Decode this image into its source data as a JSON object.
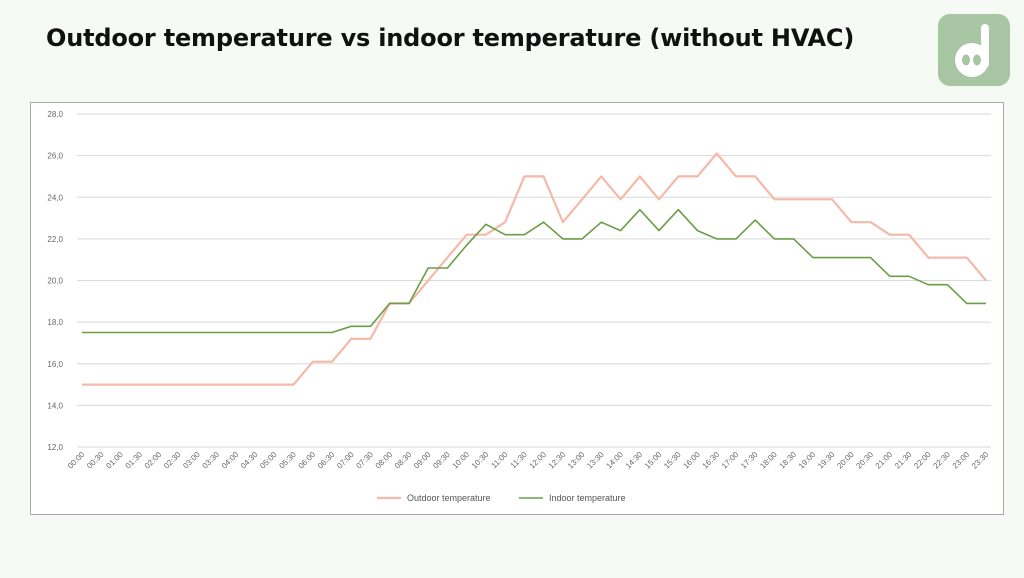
{
  "page": {
    "title": "Outdoor temperature vs indoor temperature (without HVAC)",
    "logo_icon": "dd-logo-icon"
  },
  "colors": {
    "background": "#f6faf4",
    "logo": "#a9c6a4",
    "outdoor": "#f4b9a9",
    "indoor": "#6a9e46",
    "grid": "#d9d9d9"
  },
  "chart_data": {
    "type": "line",
    "title": "",
    "xlabel": "",
    "ylabel": "",
    "ylim": [
      12.0,
      28.0
    ],
    "y_ticks": [
      "12,0",
      "14,0",
      "16,0",
      "18,0",
      "20,0",
      "22,0",
      "24,0",
      "26,0",
      "28,0"
    ],
    "grid": true,
    "legend_position": "bottom",
    "x": [
      "00:00",
      "00:30",
      "01:00",
      "01:30",
      "02:00",
      "02:30",
      "03:00",
      "03:30",
      "04:00",
      "04:30",
      "05:00",
      "05:30",
      "06:00",
      "06:30",
      "07:00",
      "07:30",
      "08:00",
      "08:30",
      "09:00",
      "09:30",
      "10:00",
      "10:30",
      "11:00",
      "11:30",
      "12:00",
      "12:30",
      "13:00",
      "13:30",
      "14:00",
      "14:30",
      "15:00",
      "15:30",
      "16:00",
      "16:30",
      "17:00",
      "17:30",
      "18:00",
      "18:30",
      "19:00",
      "19:30",
      "20:00",
      "20:30",
      "21:00",
      "21:30",
      "22:00",
      "22:30",
      "23:00",
      "23:30"
    ],
    "series": [
      {
        "name": "Outdoor temperature",
        "color": "#f4b9a9",
        "values": [
          15,
          15,
          15,
          15,
          15,
          15,
          15,
          15,
          15,
          15,
          15,
          15,
          16.1,
          16.1,
          17.2,
          17.2,
          18.9,
          18.9,
          20.0,
          21.1,
          22.2,
          22.2,
          22.8,
          25.0,
          25.0,
          22.8,
          23.9,
          25.0,
          23.9,
          25.0,
          23.9,
          25.0,
          25.0,
          26.1,
          25.0,
          25.0,
          23.9,
          23.9,
          23.9,
          23.9,
          22.8,
          22.8,
          22.2,
          22.2,
          21.1,
          21.1,
          21.1,
          20.0
        ]
      },
      {
        "name": "Indoor temperature",
        "color": "#6a9e46",
        "values": [
          17.5,
          17.5,
          17.5,
          17.5,
          17.5,
          17.5,
          17.5,
          17.5,
          17.5,
          17.5,
          17.5,
          17.5,
          17.5,
          17.5,
          17.8,
          17.8,
          18.9,
          18.9,
          20.6,
          20.6,
          21.7,
          22.7,
          22.2,
          22.2,
          22.8,
          22.0,
          22.0,
          22.8,
          22.4,
          23.4,
          22.4,
          23.4,
          22.4,
          22.0,
          22.0,
          22.9,
          22.0,
          22.0,
          21.1,
          21.1,
          21.1,
          21.1,
          20.2,
          20.2,
          19.8,
          19.8,
          18.9,
          18.9
        ]
      }
    ]
  }
}
